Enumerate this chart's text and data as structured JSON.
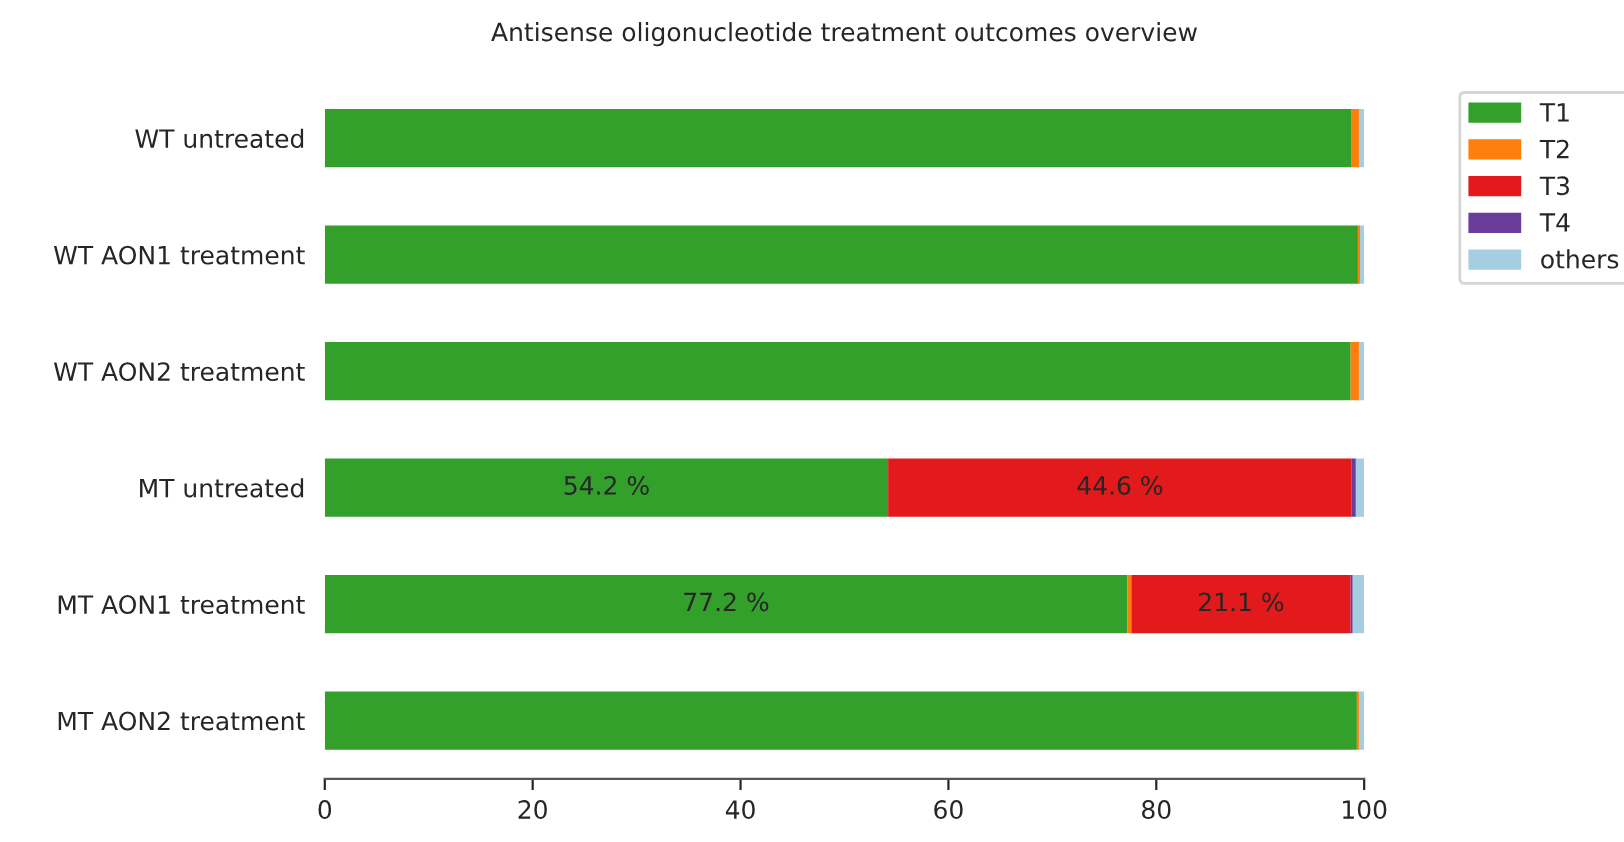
{
  "chart_data": {
    "type": "bar",
    "orientation": "horizontal",
    "stacked": true,
    "title": "Antisense oligonucleotide treatment outcomes overview",
    "categories": [
      "WT untreated",
      "WT AON1 treatment",
      "WT AON2 treatment",
      "MT untreated",
      "MT AON1 treatment",
      "MT AON2 treatment"
    ],
    "series": [
      {
        "name": "T1",
        "color": "#33a02c",
        "values": [
          98.8,
          99.4,
          98.7,
          54.2,
          77.2,
          99.3
        ],
        "value_labels": [
          null,
          null,
          null,
          "54.2 %",
          "77.2 %",
          null
        ]
      },
      {
        "name": "T2",
        "color": "#ff7f0e",
        "values": [
          0.7,
          0.2,
          0.8,
          0,
          0.4,
          0.2
        ]
      },
      {
        "name": "T3",
        "color": "#e31a1c",
        "values": [
          0,
          0,
          0,
          44.6,
          21.1,
          0
        ],
        "value_labels": [
          null,
          null,
          null,
          "44.6 %",
          "21.1 %",
          null
        ]
      },
      {
        "name": "T4",
        "color": "#6a3d9a",
        "values": [
          0,
          0,
          0,
          0.4,
          0.2,
          0
        ]
      },
      {
        "name": "others",
        "color": "#a6cee3",
        "values": [
          0.5,
          0.4,
          0.5,
          0.8,
          1.1,
          0.5
        ]
      }
    ],
    "xlim": [
      0,
      100
    ],
    "xticks": [
      0,
      20,
      40,
      60,
      80,
      100
    ],
    "legend": "top right",
    "grid": false
  }
}
